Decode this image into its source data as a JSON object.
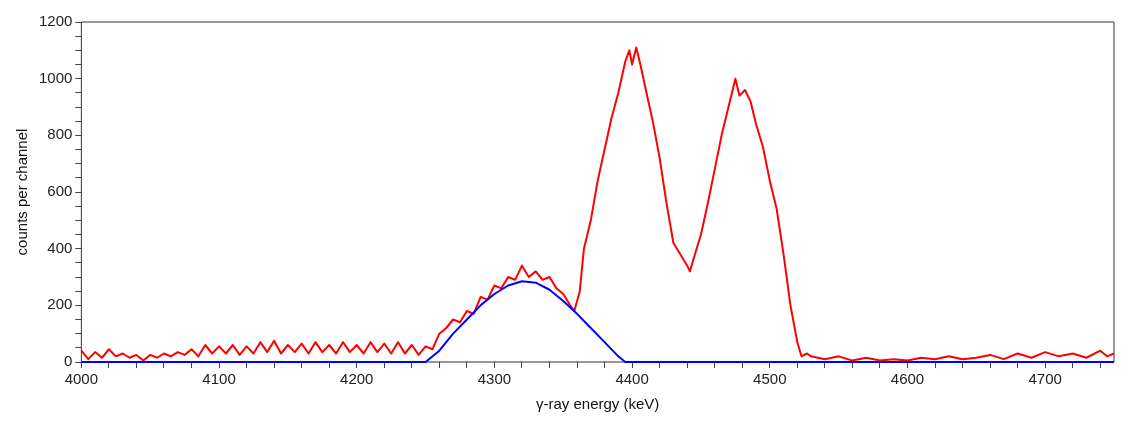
{
  "chart_data": {
    "type": "line",
    "xlabel": "γ-ray energy (keV)",
    "ylabel": "counts per channel",
    "xlim": [
      4000,
      4750
    ],
    "ylim": [
      0,
      1200
    ],
    "xticks": [
      4000,
      {
        "value": 4020,
        "label": null
      },
      {
        "value": 4040,
        "label": null
      },
      {
        "value": 4060,
        "label": null
      },
      {
        "value": 4080,
        "label": null
      },
      4100,
      {
        "value": 4120,
        "label": null
      },
      {
        "value": 4140,
        "label": null
      },
      {
        "value": 4160,
        "label": null
      },
      {
        "value": 4180,
        "label": null
      },
      4200,
      {
        "value": 4220,
        "label": null
      },
      {
        "value": 4240,
        "label": null
      },
      {
        "value": 4260,
        "label": null
      },
      {
        "value": 4280,
        "label": null
      },
      4300,
      {
        "value": 4320,
        "label": null
      },
      {
        "value": 4340,
        "label": null
      },
      {
        "value": 4360,
        "label": null
      },
      {
        "value": 4380,
        "label": null
      },
      4400,
      {
        "value": 4420,
        "label": null
      },
      {
        "value": 4440,
        "label": null
      },
      {
        "value": 4460,
        "label": null
      },
      {
        "value": 4480,
        "label": null
      },
      4500,
      {
        "value": 4520,
        "label": null
      },
      {
        "value": 4540,
        "label": null
      },
      {
        "value": 4560,
        "label": null
      },
      {
        "value": 4580,
        "label": null
      },
      4600,
      {
        "value": 4620,
        "label": null
      },
      {
        "value": 4640,
        "label": null
      },
      {
        "value": 4660,
        "label": null
      },
      {
        "value": 4680,
        "label": null
      },
      4700,
      {
        "value": 4720,
        "label": null
      },
      {
        "value": 4740,
        "label": null
      }
    ],
    "yticks": [
      0,
      {
        "value": 50,
        "label": null
      },
      {
        "value": 100,
        "label": null
      },
      {
        "value": 150,
        "label": null
      },
      200,
      {
        "value": 250,
        "label": null
      },
      {
        "value": 300,
        "label": null
      },
      {
        "value": 350,
        "label": null
      },
      400,
      {
        "value": 450,
        "label": null
      },
      {
        "value": 500,
        "label": null
      },
      {
        "value": 550,
        "label": null
      },
      600,
      {
        "value": 650,
        "label": null
      },
      {
        "value": 700,
        "label": null
      },
      {
        "value": 750,
        "label": null
      },
      800,
      {
        "value": 850,
        "label": null
      },
      {
        "value": 900,
        "label": null
      },
      {
        "value": 950,
        "label": null
      },
      1000,
      {
        "value": 1050,
        "label": null
      },
      {
        "value": 1100,
        "label": null
      },
      {
        "value": 1150,
        "label": null
      },
      1200
    ],
    "grid": false,
    "legend": false,
    "marker": "none",
    "line_style": "solid",
    "series": [
      {
        "color": "#ff0000",
        "x": [
          4000,
          4005,
          4010,
          4015,
          4020,
          4025,
          4030,
          4035,
          4040,
          4045,
          4050,
          4055,
          4060,
          4065,
          4070,
          4075,
          4080,
          4085,
          4090,
          4095,
          4100,
          4105,
          4110,
          4115,
          4120,
          4125,
          4130,
          4135,
          4140,
          4145,
          4150,
          4155,
          4160,
          4165,
          4170,
          4175,
          4180,
          4185,
          4190,
          4195,
          4200,
          4205,
          4210,
          4215,
          4220,
          4225,
          4230,
          4235,
          4240,
          4245,
          4250,
          4255,
          4260,
          4265,
          4270,
          4275,
          4280,
          4285,
          4290,
          4295,
          4300,
          4305,
          4310,
          4315,
          4320,
          4325,
          4330,
          4335,
          4340,
          4345,
          4350,
          4355,
          4358,
          4362,
          4365,
          4370,
          4375,
          4380,
          4385,
          4390,
          4395,
          4398,
          4400,
          4403,
          4406,
          4410,
          4415,
          4420,
          4425,
          4430,
          4435,
          4440,
          4442,
          4445,
          4450,
          4455,
          4460,
          4465,
          4470,
          4475,
          4478,
          4482,
          4486,
          4490,
          4495,
          4500,
          4505,
          4510,
          4515,
          4520,
          4523,
          4527,
          4530,
          4540,
          4550,
          4560,
          4570,
          4580,
          4590,
          4600,
          4610,
          4620,
          4630,
          4640,
          4650,
          4660,
          4670,
          4680,
          4690,
          4700,
          4710,
          4720,
          4730,
          4740,
          4745,
          4750
        ],
        "values": [
          40,
          10,
          35,
          15,
          45,
          20,
          30,
          15,
          25,
          5,
          25,
          15,
          30,
          20,
          35,
          25,
          45,
          20,
          60,
          30,
          55,
          30,
          60,
          25,
          55,
          30,
          70,
          35,
          75,
          30,
          60,
          35,
          65,
          30,
          70,
          35,
          60,
          30,
          70,
          35,
          60,
          30,
          70,
          35,
          65,
          30,
          70,
          30,
          60,
          25,
          55,
          45,
          100,
          120,
          150,
          140,
          180,
          170,
          230,
          220,
          270,
          260,
          300,
          290,
          340,
          300,
          320,
          290,
          300,
          260,
          240,
          200,
          180,
          250,
          400,
          500,
          640,
          750,
          860,
          950,
          1060,
          1100,
          1050,
          1110,
          1050,
          960,
          850,
          720,
          560,
          420,
          380,
          340,
          320,
          370,
          450,
          560,
          680,
          800,
          900,
          1000,
          940,
          960,
          920,
          840,
          760,
          640,
          540,
          380,
          200,
          70,
          20,
          30,
          20,
          10,
          20,
          5,
          15,
          5,
          10,
          5,
          15,
          10,
          20,
          10,
          15,
          25,
          10,
          30,
          15,
          35,
          20,
          30,
          15,
          40,
          20,
          30
        ]
      },
      {
        "color": "#0000ff",
        "x": [
          4000,
          4250,
          4260,
          4270,
          4280,
          4290,
          4300,
          4310,
          4320,
          4330,
          4340,
          4350,
          4360,
          4370,
          4380,
          4390,
          4395,
          4750
        ],
        "values": [
          0,
          0,
          40,
          100,
          150,
          200,
          240,
          270,
          285,
          280,
          255,
          215,
          170,
          120,
          70,
          20,
          0,
          0
        ]
      }
    ]
  }
}
